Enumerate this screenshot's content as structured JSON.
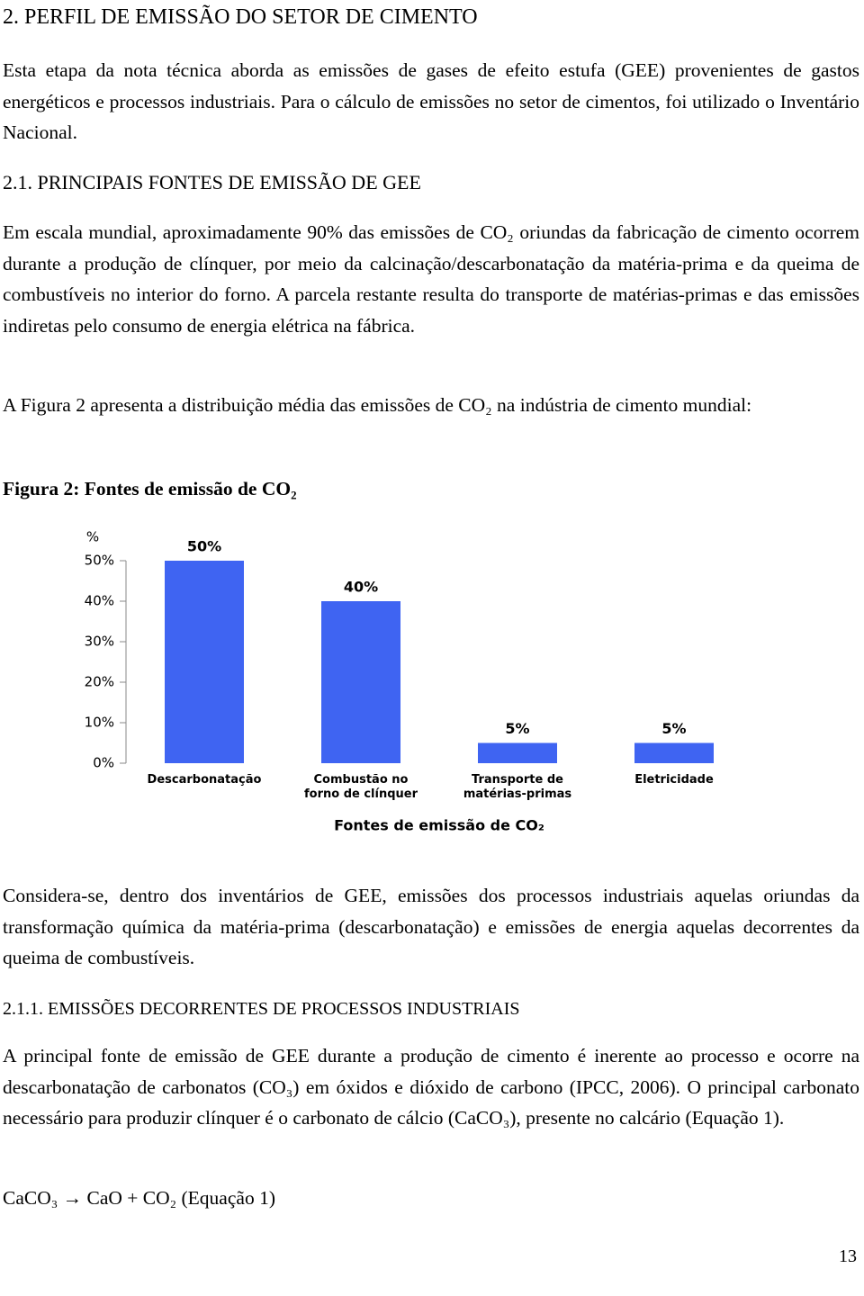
{
  "heading": "2. PERFIL DE EMISSÃO DO SETOR DE CIMENTO",
  "intro": "Esta etapa da nota técnica aborda as emissões de gases de efeito estufa (GEE) provenientes de gastos energéticos e processos industriais. Para o cálculo de emissões no setor de cimentos, foi utilizado o Inventário Nacional.",
  "section": {
    "title": "2.1. PRINCIPAIS FONTES DE EMISSÃO DE GEE",
    "paragraphs": [
      "Em escala mundial, aproximadamente 90% das emissões de CO₂ oriundas da fabricação de cimento ocorrem durante a produção de clínquer, por meio da calcinação/descarbonatação da matéria-prima e da queima de combustíveis no interior do forno. A parcela restante resulta do transporte de matérias-primas e das emissões indiretas pelo consumo de energia elétrica na fábrica.",
      "A Figura 2 apresenta a distribuição média das emissões de CO₂ na indústria de cimento mundial:"
    ],
    "figure_caption": "Figura 2: Fontes de emissão de CO₂",
    "after": "Considera-se, dentro dos inventários de GEE, emissões dos processos industriais aquelas oriundas da transformação química da matéria-prima (descarbonatação) e emissões de energia aquelas decorrentes da queima de combustíveis."
  },
  "subsection": {
    "title": "2.1.1. EMISSÕES DECORRENTES DE PROCESSOS INDUSTRIAIS",
    "paragraph": "A principal fonte de emissão de GEE durante a produção de cimento é inerente ao processo e ocorre na descarbonatação de carbonatos (CO₃) em óxidos e dióxido de carbono (IPCC, 2006). O principal carbonato necessário para produzir clínquer é o carbonato de cálcio (CaCO₃), presente no calcário (Equação 1).",
    "equation": "CaCO₃ → CaO + CO₂ (Equação 1)"
  },
  "page_number": "13",
  "chart_data": {
    "type": "bar",
    "ylabel": "%",
    "xlabel": "Fontes de emissão de CO₂",
    "categories": [
      "Descarbonatação",
      "Combustão no forno de clínquer",
      "Transporte de matérias-primas",
      "Eletricidade"
    ],
    "values": [
      50,
      40,
      5,
      5
    ],
    "value_labels": [
      "50%",
      "40%",
      "5%",
      "5%"
    ],
    "color": "#3f64f2",
    "ylim": [
      0,
      50
    ],
    "yticks": [
      {
        "value": 0,
        "label": "0%"
      },
      {
        "value": 10,
        "label": "10%"
      },
      {
        "value": 20,
        "label": "20%"
      },
      {
        "value": 30,
        "label": "30%"
      },
      {
        "value": 40,
        "label": "40%"
      },
      {
        "value": 50,
        "label": "50%"
      }
    ],
    "grid": false
  }
}
